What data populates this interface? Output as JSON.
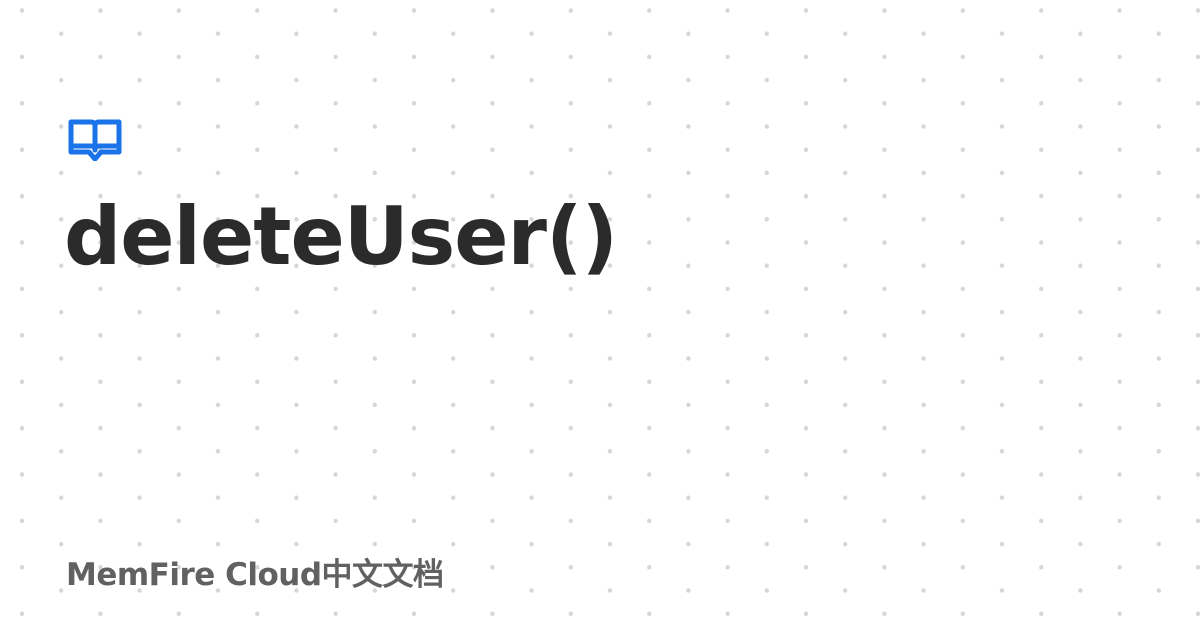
{
  "page": {
    "title": "deleteUser()",
    "site_name": "MemFire Cloud中文文档"
  },
  "icons": {
    "logo": "open-book-icon"
  },
  "colors": {
    "background": "#ffffff",
    "accent": "#1a73e8",
    "title_text": "#2b2b2b",
    "site_text": "#616161",
    "dot": "#d6d6d6"
  }
}
